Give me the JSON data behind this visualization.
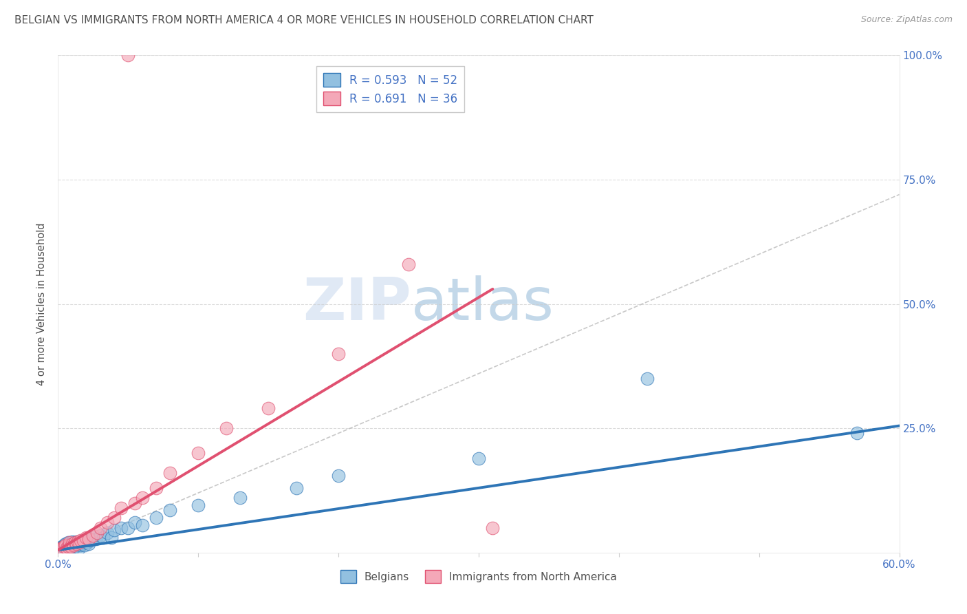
{
  "title": "BELGIAN VS IMMIGRANTS FROM NORTH AMERICA 4 OR MORE VEHICLES IN HOUSEHOLD CORRELATION CHART",
  "source": "Source: ZipAtlas.com",
  "ylabel": "4 or more Vehicles in Household",
  "xlim": [
    0.0,
    0.6
  ],
  "ylim": [
    0.0,
    1.0
  ],
  "blue_color": "#92C0E0",
  "pink_color": "#F4A8B8",
  "blue_line_color": "#2E75B6",
  "pink_line_color": "#E05070",
  "R_blue": 0.593,
  "N_blue": 52,
  "R_pink": 0.691,
  "N_pink": 36,
  "legend_label_blue": "Belgians",
  "legend_label_pink": "Immigrants from North America",
  "watermark_zip": "ZIP",
  "watermark_atlas": "atlas",
  "background_color": "#FFFFFF",
  "grid_color": "#CCCCCC",
  "title_color": "#505050",
  "axis_label_color": "#505050",
  "tick_label_color": "#4472C4",
  "blue_scatter_x": [
    0.002,
    0.003,
    0.004,
    0.005,
    0.005,
    0.006,
    0.007,
    0.007,
    0.008,
    0.008,
    0.009,
    0.009,
    0.01,
    0.01,
    0.01,
    0.011,
    0.011,
    0.012,
    0.012,
    0.013,
    0.013,
    0.014,
    0.015,
    0.015,
    0.016,
    0.017,
    0.018,
    0.019,
    0.02,
    0.021,
    0.022,
    0.023,
    0.025,
    0.027,
    0.03,
    0.032,
    0.035,
    0.038,
    0.04,
    0.045,
    0.05,
    0.055,
    0.06,
    0.07,
    0.08,
    0.1,
    0.13,
    0.17,
    0.2,
    0.3,
    0.42,
    0.57
  ],
  "blue_scatter_y": [
    0.01,
    0.012,
    0.015,
    0.008,
    0.018,
    0.01,
    0.012,
    0.02,
    0.01,
    0.015,
    0.012,
    0.018,
    0.008,
    0.015,
    0.022,
    0.01,
    0.018,
    0.012,
    0.02,
    0.015,
    0.022,
    0.018,
    0.01,
    0.02,
    0.015,
    0.018,
    0.02,
    0.015,
    0.025,
    0.02,
    0.018,
    0.025,
    0.03,
    0.028,
    0.035,
    0.03,
    0.04,
    0.03,
    0.045,
    0.05,
    0.05,
    0.06,
    0.055,
    0.07,
    0.085,
    0.095,
    0.11,
    0.13,
    0.155,
    0.19,
    0.35,
    0.24
  ],
  "pink_scatter_x": [
    0.002,
    0.003,
    0.004,
    0.005,
    0.006,
    0.007,
    0.008,
    0.008,
    0.009,
    0.01,
    0.011,
    0.012,
    0.013,
    0.014,
    0.015,
    0.016,
    0.018,
    0.02,
    0.022,
    0.025,
    0.028,
    0.03,
    0.035,
    0.04,
    0.045,
    0.055,
    0.06,
    0.07,
    0.08,
    0.1,
    0.12,
    0.15,
    0.2,
    0.25,
    0.31,
    0.05
  ],
  "pink_scatter_y": [
    0.008,
    0.01,
    0.012,
    0.015,
    0.01,
    0.012,
    0.015,
    0.02,
    0.012,
    0.018,
    0.015,
    0.02,
    0.018,
    0.022,
    0.02,
    0.025,
    0.025,
    0.03,
    0.028,
    0.035,
    0.04,
    0.05,
    0.06,
    0.07,
    0.09,
    0.1,
    0.11,
    0.13,
    0.16,
    0.2,
    0.25,
    0.29,
    0.4,
    0.58,
    0.05,
    1.0
  ],
  "blue_line_x0": 0.0,
  "blue_line_x1": 0.6,
  "blue_line_y0": 0.005,
  "blue_line_y1": 0.255,
  "pink_line_x0": 0.0,
  "pink_line_x1": 0.31,
  "pink_line_y0": 0.005,
  "pink_line_y1": 0.53,
  "dash_line_x0": 0.0,
  "dash_line_x1": 0.6,
  "dash_line_y0": 0.0,
  "dash_line_y1": 0.72
}
